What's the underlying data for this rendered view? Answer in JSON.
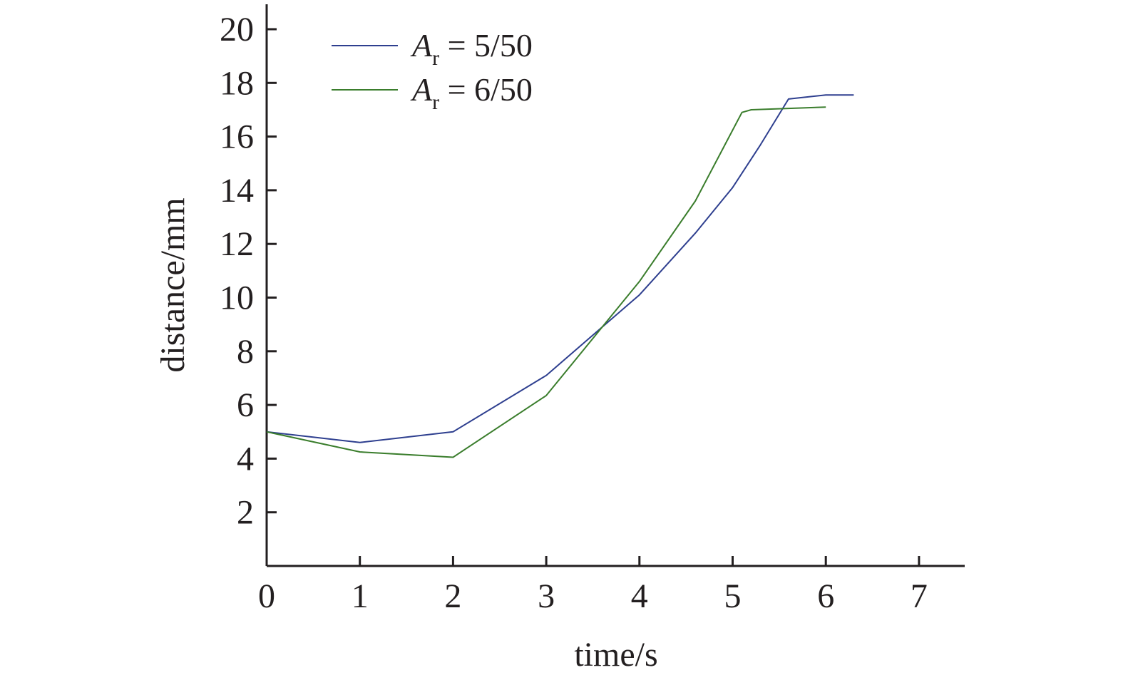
{
  "chart_data": {
    "type": "line",
    "xlabel": "time/s",
    "ylabel": "distance/mm",
    "xlim": [
      0,
      7.5
    ],
    "ylim": [
      0,
      21
    ],
    "x_ticks": [
      "0",
      "1",
      "2",
      "3",
      "4",
      "5",
      "6",
      "7"
    ],
    "y_ticks": [
      "2",
      "4",
      "6",
      "8",
      "10",
      "12",
      "14",
      "16",
      "18",
      "20"
    ],
    "grid": false,
    "legend_position": "top-left",
    "series": [
      {
        "legend_symbol": "A",
        "legend_subscript": "r",
        "legend_value": " = 5/50",
        "color": "#2e3f8f",
        "x": [
          0,
          1,
          2,
          3,
          4,
          4.6,
          5,
          5.3,
          5.6,
          6,
          6.3
        ],
        "y": [
          5.0,
          4.6,
          5.0,
          7.1,
          10.1,
          12.4,
          14.1,
          15.7,
          17.4,
          17.55,
          17.55
        ]
      },
      {
        "legend_symbol": "A",
        "legend_subscript": "r",
        "legend_value": " = 6/50",
        "color": "#3a7d2c",
        "x": [
          0,
          1,
          2,
          3,
          4,
          4.6,
          5.1,
          5.2,
          6
        ],
        "y": [
          5.0,
          4.25,
          4.05,
          6.35,
          10.6,
          13.6,
          16.9,
          17.0,
          17.1
        ]
      }
    ]
  }
}
